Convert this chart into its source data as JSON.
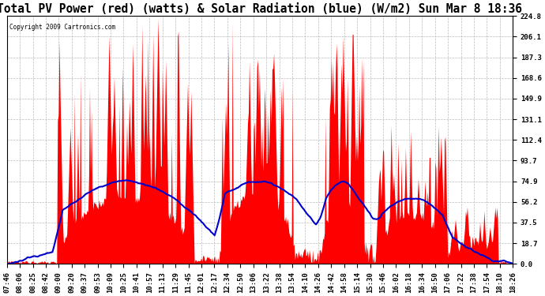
{
  "title": "Total PV Power (red) (watts) & Solar Radiation (blue) (W/m2) Sun Mar 8 18:36",
  "copyright": "Copyright 2009 Cartronics.com",
  "ylabel_right_values": [
    224.8,
    206.1,
    187.3,
    168.6,
    149.9,
    131.1,
    112.4,
    93.7,
    74.9,
    56.2,
    37.5,
    18.7,
    0.0
  ],
  "ylim": [
    0.0,
    224.8
  ],
  "x_labels": [
    "07:46",
    "08:06",
    "08:25",
    "08:42",
    "09:00",
    "09:20",
    "09:37",
    "09:53",
    "10:09",
    "10:25",
    "10:41",
    "10:57",
    "11:13",
    "11:29",
    "11:45",
    "12:01",
    "12:17",
    "12:34",
    "12:50",
    "13:06",
    "13:22",
    "13:38",
    "13:54",
    "14:10",
    "14:26",
    "14:42",
    "14:58",
    "15:14",
    "15:30",
    "15:46",
    "16:02",
    "16:18",
    "16:34",
    "16:50",
    "17:06",
    "17:22",
    "17:38",
    "17:54",
    "18:10",
    "18:26"
  ],
  "background_color": "#ffffff",
  "red_color": "#ff0000",
  "blue_color": "#0000cc",
  "grid_color": "#bbbbbb",
  "title_fontsize": 10.5,
  "tick_fontsize": 6.5,
  "figsize": [
    6.9,
    3.75
  ],
  "dpi": 100
}
